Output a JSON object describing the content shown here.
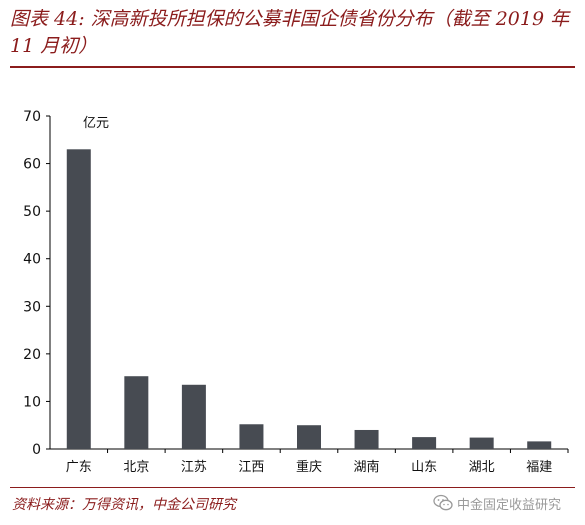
{
  "title": "图表 44: 深高新投所担保的公募非国企债省份分布（截至 2019 年 11 月初）",
  "source": "资料来源：万得资讯，中金公司研究",
  "watermark": "中金固定收益研究",
  "colors": {
    "bar": "#474b52",
    "accent": "#8b1c1c",
    "axis": "#000000"
  },
  "chart_data": {
    "type": "bar",
    "title": "",
    "unit_label": "亿元",
    "categories": [
      "广东",
      "北京",
      "江苏",
      "江西",
      "重庆",
      "湖南",
      "山东",
      "湖北",
      "福建"
    ],
    "values": [
      63,
      15.3,
      13.5,
      5.2,
      5.0,
      4.0,
      2.5,
      2.4,
      1.6
    ],
    "ylim": [
      0,
      70
    ],
    "yticks": [
      0,
      10,
      20,
      30,
      40,
      50,
      60,
      70
    ],
    "grid": false,
    "legend": "none"
  }
}
